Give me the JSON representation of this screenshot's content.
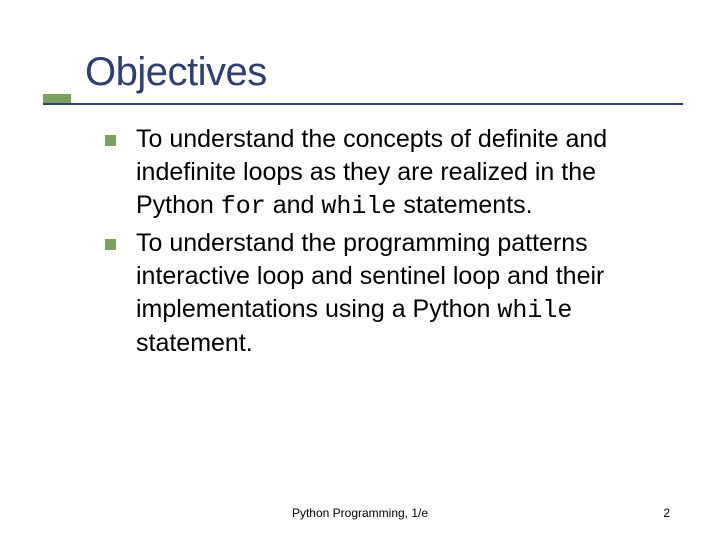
{
  "title": "Objectives",
  "accent_color": "#7ba060",
  "title_color": "#2f3f6f",
  "bullet_color": "#7ba060",
  "bullets": [
    {
      "pre": "To understand the concepts of definite and indefinite loops as they are realized in the Python ",
      "code1": "for",
      "mid": " and ",
      "code2": "while",
      "post": " statements."
    },
    {
      "pre": "To understand the programming patterns interactive loop and sentinel loop and their implementations using a Python ",
      "code1": "while",
      "mid": "",
      "code2": "",
      "post": " statement."
    }
  ],
  "footer": "Python Programming, 1/e",
  "page_number": "2"
}
